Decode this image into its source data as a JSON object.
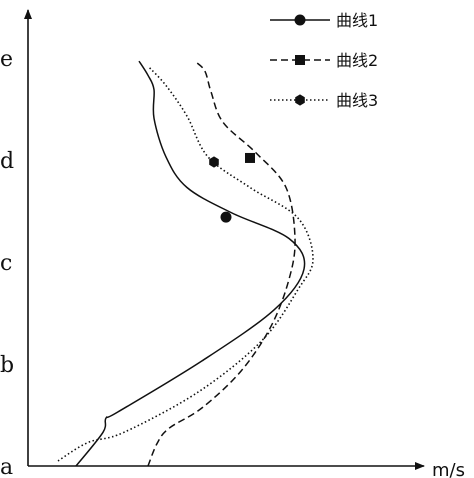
{
  "chart_data": {
    "type": "line",
    "title": "",
    "xlabel": "m/s",
    "ylabel": "",
    "y_categories": [
      "a",
      "b",
      "c",
      "d",
      "e"
    ],
    "ylim": [
      0,
      4
    ],
    "xlim": [
      0,
      100
    ],
    "grid": false,
    "legend_position": "top-right",
    "series": [
      {
        "name": "曲线1",
        "style": "solid",
        "marker": "circle",
        "color": "#111111",
        "points": [
          [
            16,
            0.0
          ],
          [
            25,
            0.33
          ],
          [
            26,
            0.47
          ],
          [
            30,
            0.53
          ],
          [
            58,
            1.03
          ],
          [
            82,
            1.53
          ],
          [
            92,
            1.93
          ],
          [
            87,
            2.23
          ],
          [
            68,
            2.48
          ],
          [
            53,
            2.73
          ],
          [
            46,
            3.03
          ],
          [
            42,
            3.41
          ],
          [
            42,
            3.69
          ],
          [
            40,
            3.83
          ],
          [
            37,
            3.97
          ]
        ],
        "marker_points": [
          [
            66,
            2.44
          ]
        ]
      },
      {
        "name": "曲线2",
        "style": "dashed",
        "marker": "square",
        "color": "#111111",
        "points": [
          [
            40,
            0.0
          ],
          [
            43,
            0.22
          ],
          [
            47,
            0.37
          ],
          [
            58,
            0.57
          ],
          [
            71,
            0.93
          ],
          [
            81,
            1.37
          ],
          [
            87,
            1.83
          ],
          [
            89,
            2.23
          ],
          [
            86,
            2.73
          ],
          [
            76,
            3.07
          ],
          [
            65,
            3.37
          ],
          [
            61,
            3.67
          ],
          [
            59,
            3.87
          ],
          [
            56,
            3.96
          ]
        ],
        "marker_points": [
          [
            74,
            3.02
          ]
        ]
      },
      {
        "name": "曲线3",
        "style": "dotted",
        "marker": "hexagon",
        "color": "#111111",
        "points": [
          [
            10,
            0.05
          ],
          [
            20,
            0.23
          ],
          [
            32,
            0.33
          ],
          [
            57,
            0.73
          ],
          [
            78,
            1.23
          ],
          [
            90,
            1.73
          ],
          [
            95,
            2.03
          ],
          [
            90,
            2.43
          ],
          [
            74,
            2.73
          ],
          [
            60,
            3.03
          ],
          [
            53,
            3.43
          ],
          [
            46,
            3.73
          ],
          [
            40,
            3.92
          ]
        ],
        "marker_points": [
          [
            62,
            2.98
          ]
        ]
      }
    ]
  }
}
